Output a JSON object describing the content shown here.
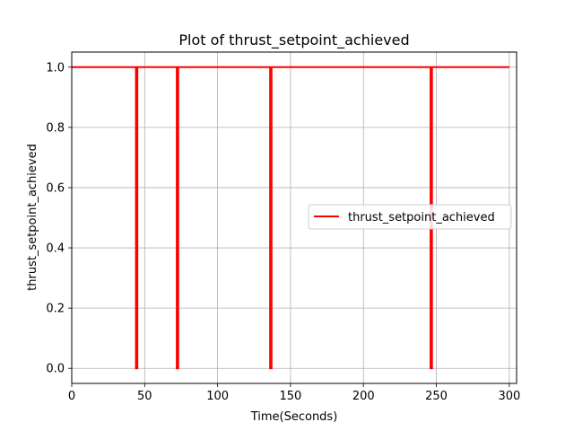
{
  "chart_data": {
    "type": "line",
    "title": "Plot of thrust_setpoint_achieved",
    "xlabel": "Time(Seconds)",
    "ylabel": "thrust_setpoint_achieved",
    "xlim": [
      0,
      305
    ],
    "ylim": [
      -0.05,
      1.05
    ],
    "xticks": [
      0,
      50,
      100,
      150,
      200,
      250,
      300
    ],
    "yticks": [
      0.0,
      0.2,
      0.4,
      0.6,
      0.8,
      1.0
    ],
    "xtick_labels": [
      "0",
      "50",
      "100",
      "150",
      "200",
      "250",
      "300"
    ],
    "ytick_labels": [
      "0.0",
      "0.2",
      "0.4",
      "0.6",
      "0.8",
      "1.0"
    ],
    "grid": true,
    "legend": {
      "placement": "center-right"
    },
    "series": [
      {
        "name": "thrust_setpoint_achieved",
        "color": "#ff0000",
        "x": [
          0,
          44,
          44,
          45,
          45,
          72,
          72,
          73,
          73,
          136,
          136,
          137,
          137,
          246,
          246,
          247,
          247,
          300
        ],
        "y": [
          1,
          1,
          0,
          0,
          1,
          1,
          0,
          0,
          1,
          1,
          0,
          0,
          1,
          1,
          0,
          0,
          1,
          1
        ]
      }
    ]
  }
}
